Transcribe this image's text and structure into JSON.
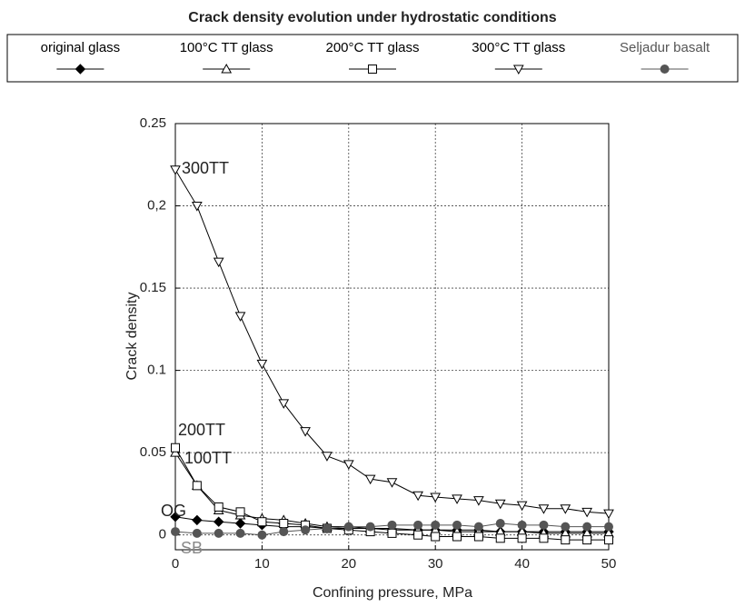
{
  "chart_data": {
    "type": "line",
    "title": "Crack density evolution under hydrostatic conditions",
    "xlabel": "Confining pressure, MPa",
    "ylabel": "Crack density",
    "x": [
      0,
      2.5,
      5,
      7.5,
      10,
      12.5,
      15,
      17.5,
      20,
      22.5,
      25,
      28,
      30,
      32.5,
      35,
      37.5,
      40,
      42.5,
      45,
      47.5,
      50
    ],
    "series": [
      {
        "name": "original glass",
        "color": "#000000",
        "marker": "diamond",
        "values": [
          0.011,
          0.009,
          0.008,
          0.007,
          0.006,
          0.005,
          0.005,
          0.004,
          0.004,
          0.004,
          0.003,
          0.003,
          0.003,
          0.003,
          0.003,
          0.002,
          0.002,
          0.002,
          0.002,
          0.002,
          0.002
        ]
      },
      {
        "name": "100°C TT glass",
        "color": "#000000",
        "marker": "triangle-up",
        "values": [
          0.05,
          0.03,
          0.015,
          0.012,
          0.01,
          0.009,
          0.007,
          0.005,
          0.005,
          0.004,
          0.004,
          0.003,
          0.003,
          0.002,
          0.002,
          0.002,
          0.002,
          0.001,
          0.001,
          0.001,
          0.001
        ]
      },
      {
        "name": "200°C TT glass",
        "color": "#000000",
        "marker": "square",
        "values": [
          0.053,
          0.03,
          0.017,
          0.014,
          0.008,
          0.007,
          0.006,
          0.004,
          0.003,
          0.002,
          0.001,
          0,
          -0.001,
          -0.001,
          -0.001,
          -0.002,
          -0.002,
          -0.002,
          -0.003,
          -0.003,
          -0.003
        ]
      },
      {
        "name": "300°C TT glass",
        "color": "#000000",
        "marker": "triangle-down",
        "values": [
          0.222,
          0.2,
          0.166,
          0.133,
          0.104,
          0.08,
          0.063,
          0.048,
          0.043,
          0.034,
          0.032,
          0.024,
          0.023,
          0.022,
          0.021,
          0.019,
          0.018,
          0.016,
          0.016,
          0.014,
          0.013
        ]
      },
      {
        "name": "Seljadur basalt",
        "color": "#555555",
        "marker": "circle",
        "values": [
          0.002,
          0.001,
          0.001,
          0.001,
          0,
          0.002,
          0.003,
          0.004,
          0.005,
          0.005,
          0.006,
          0.006,
          0.006,
          0.006,
          0.005,
          0.007,
          0.006,
          0.006,
          0.005,
          0.005,
          0.005
        ]
      }
    ],
    "annotations": [
      "300TT",
      "200TT",
      "100TT",
      "OG",
      "SB"
    ],
    "xlim": [
      0,
      50
    ],
    "xticks": [
      0,
      10,
      20,
      30,
      40,
      50
    ],
    "ylim": [
      -0.009,
      0.25
    ],
    "yticks": [
      0,
      0.05,
      0.1,
      0.15,
      {
        "value": 0.2,
        "label": "0,2"
      },
      0.25
    ],
    "grid": true
  }
}
